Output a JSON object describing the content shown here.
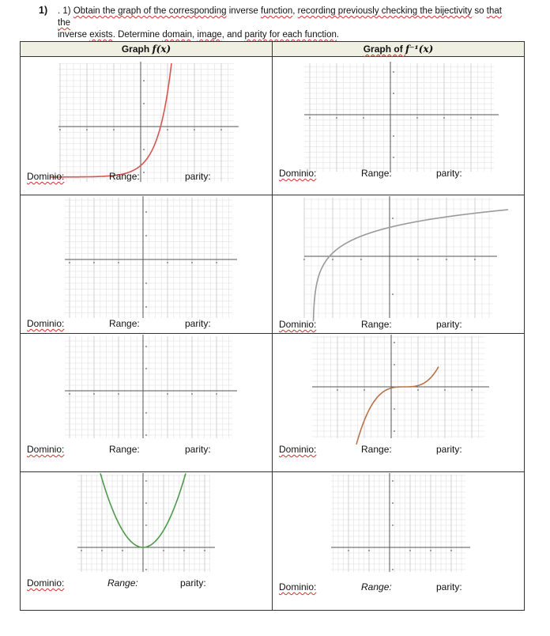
{
  "question": {
    "number": "1)",
    "lead": ". 1) ",
    "line1": [
      "Obtain the graph of the corresponding",
      " inverse ",
      "function",
      ", ",
      "recording previously checking the bijectivity",
      " so ",
      "that the"
    ],
    "line2": [
      "inverse ",
      "exists",
      ". Determine ",
      "domain",
      ", ",
      "image",
      ", and ",
      "parity for each function",
      "."
    ]
  },
  "table": {
    "header_left": "Graph ",
    "header_left_fx": "f(x)",
    "header_right": "Graph of ",
    "header_right_fx": "f⁻¹(x)"
  },
  "labels": {
    "domain": "Dominio:",
    "range": "Range:",
    "parity": "parity:"
  },
  "curve_colors": {
    "exponential": "#d9534f",
    "logarithm": "#9a9a9a",
    "cubic": "#b8734a",
    "parabola": "#4e9a4a"
  },
  "cells": [
    {
      "row": 1,
      "side": "left",
      "curve": "exponential"
    },
    {
      "row": 1,
      "side": "right",
      "curve": "none"
    },
    {
      "row": 2,
      "side": "left",
      "curve": "none"
    },
    {
      "row": 2,
      "side": "right",
      "curve": "logarithm"
    },
    {
      "row": 3,
      "side": "left",
      "curve": "none"
    },
    {
      "row": 3,
      "side": "right",
      "curve": "cubic"
    },
    {
      "row": 4,
      "side": "left",
      "curve": "parabola"
    },
    {
      "row": 4,
      "side": "right",
      "curve": "none"
    }
  ]
}
